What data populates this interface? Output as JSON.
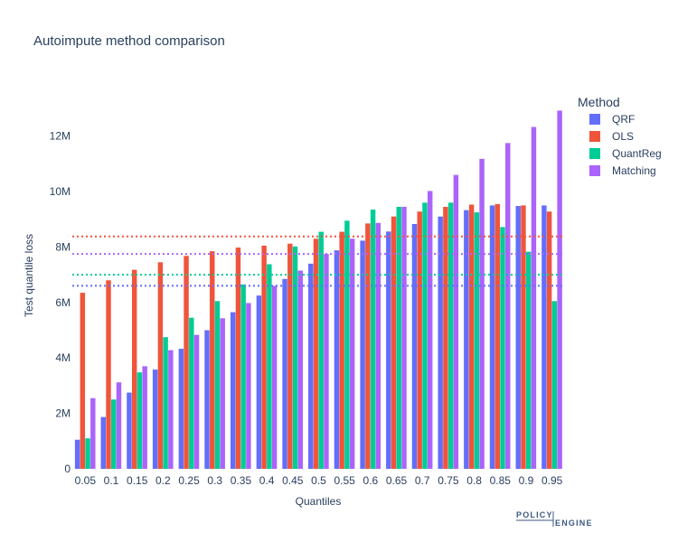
{
  "chart_data": {
    "type": "bar",
    "title": "Autoimpute method comparison",
    "xlabel": "Quantiles",
    "ylabel": "Test quantile loss",
    "categories": [
      "0.05",
      "0.1",
      "0.15",
      "0.2",
      "0.25",
      "0.3",
      "0.35",
      "0.4",
      "0.45",
      "0.5",
      "0.55",
      "0.6",
      "0.65",
      "0.7",
      "0.75",
      "0.8",
      "0.85",
      "0.9",
      "0.95"
    ],
    "ylim": [
      0,
      13000000
    ],
    "y_ticks": [
      0,
      2000000,
      4000000,
      6000000,
      8000000,
      10000000,
      12000000
    ],
    "y_tick_labels": [
      "0",
      "2M",
      "4M",
      "6M",
      "8M",
      "10M",
      "12M"
    ],
    "grid": false,
    "legend": {
      "title": "Method",
      "position": "top-right"
    },
    "series": [
      {
        "name": "QRF",
        "color": "#636efa",
        "values": [
          1050000,
          1870000,
          2750000,
          3580000,
          4330000,
          5000000,
          5650000,
          6250000,
          6850000,
          7400000,
          7880000,
          8230000,
          8560000,
          8830000,
          9100000,
          9330000,
          9500000,
          9480000,
          9500000
        ]
      },
      {
        "name": "OLS",
        "color": "#EF553B",
        "values": [
          6350000,
          6800000,
          7180000,
          7450000,
          7680000,
          7850000,
          7980000,
          8050000,
          8120000,
          8300000,
          8550000,
          8850000,
          9100000,
          9280000,
          9450000,
          9530000,
          9550000,
          9500000,
          9280000
        ]
      },
      {
        "name": "QuantReg",
        "color": "#00cc96",
        "values": [
          1100000,
          2500000,
          3480000,
          4750000,
          5450000,
          6050000,
          6650000,
          7380000,
          8020000,
          8550000,
          8950000,
          9350000,
          9450000,
          9600000,
          9600000,
          9250000,
          8720000,
          7830000,
          6050000
        ]
      },
      {
        "name": "Matching",
        "color": "#ab63fa",
        "values": [
          2550000,
          3120000,
          3700000,
          4280000,
          4830000,
          5430000,
          5980000,
          6600000,
          7150000,
          7750000,
          8300000,
          8870000,
          9450000,
          10020000,
          10600000,
          11180000,
          11750000,
          12330000,
          12920000
        ]
      }
    ],
    "reference_lines": [
      {
        "series": "OLS",
        "value": 8380000,
        "style": "dotted",
        "color": "#EF553B"
      },
      {
        "series": "Matching",
        "value": 7750000,
        "style": "dotted",
        "color": "#ab63fa"
      },
      {
        "series": "QuantReg",
        "value": 7000000,
        "style": "dotted",
        "color": "#00cc96"
      },
      {
        "series": "QRF",
        "value": 6600000,
        "style": "dotted",
        "color": "#636efa"
      }
    ]
  },
  "logo": {
    "line1": "POLICY",
    "line2": "ENGINE"
  }
}
